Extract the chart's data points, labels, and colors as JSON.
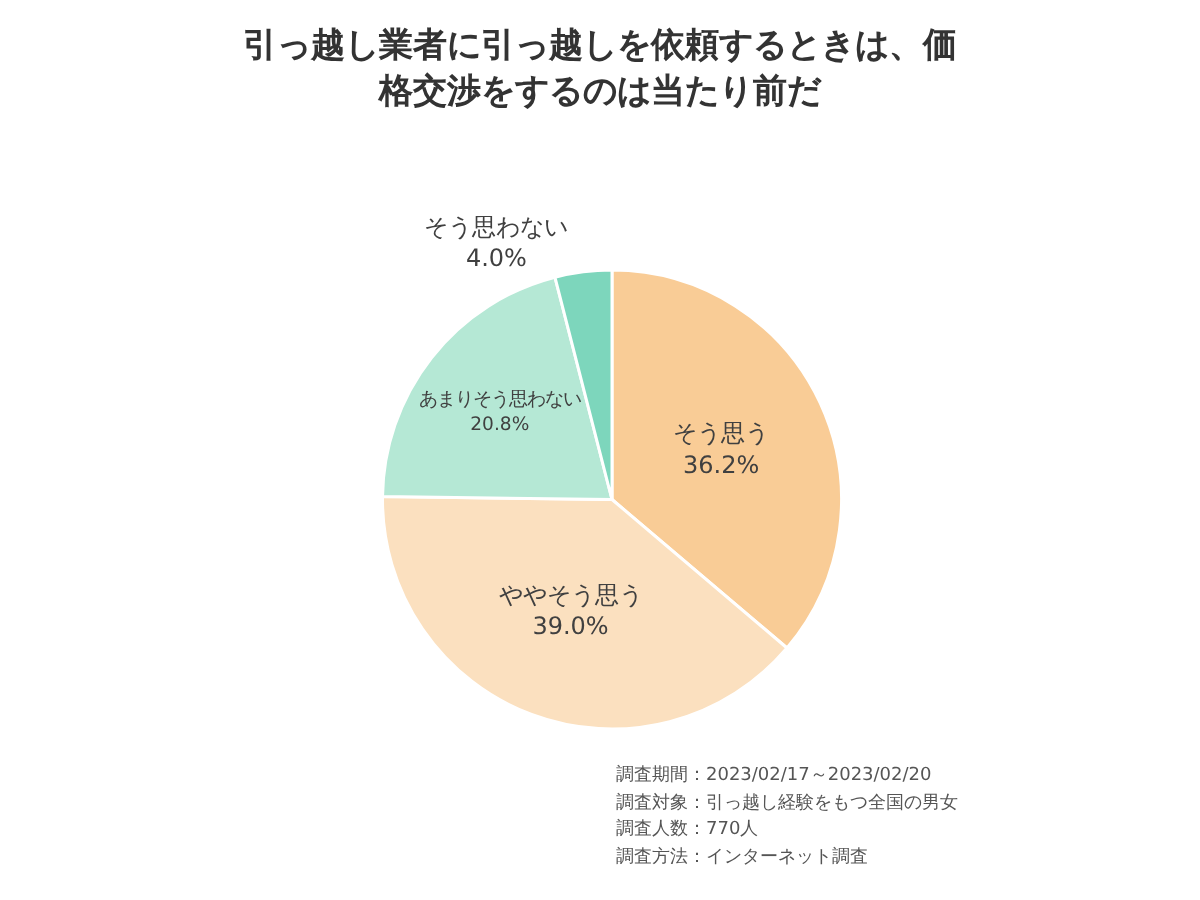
{
  "chart_data": {
    "type": "pie",
    "title": "引っ越し業者に引っ越しを依頼するときは、価格交渉をするのは当たり前だ",
    "categories": [
      "そう思う",
      "ややそう思う",
      "あまりそう思わない",
      "そう思わない"
    ],
    "values": [
      36.2,
      39.0,
      20.8,
      4.0
    ],
    "value_labels": [
      "36.2%",
      "39.0%",
      "20.8%",
      "4.0%"
    ],
    "colors": [
      "#f9cc96",
      "#fbe0bf",
      "#b5e8d5",
      "#7dd6bc"
    ],
    "annotations": [
      "調査期間：2023/02/17～2023/02/20",
      "調査対象：引っ越し経験をもつ全国の男女",
      "調査人数：770人",
      "調査方法：インターネット調査"
    ],
    "legend": false
  }
}
